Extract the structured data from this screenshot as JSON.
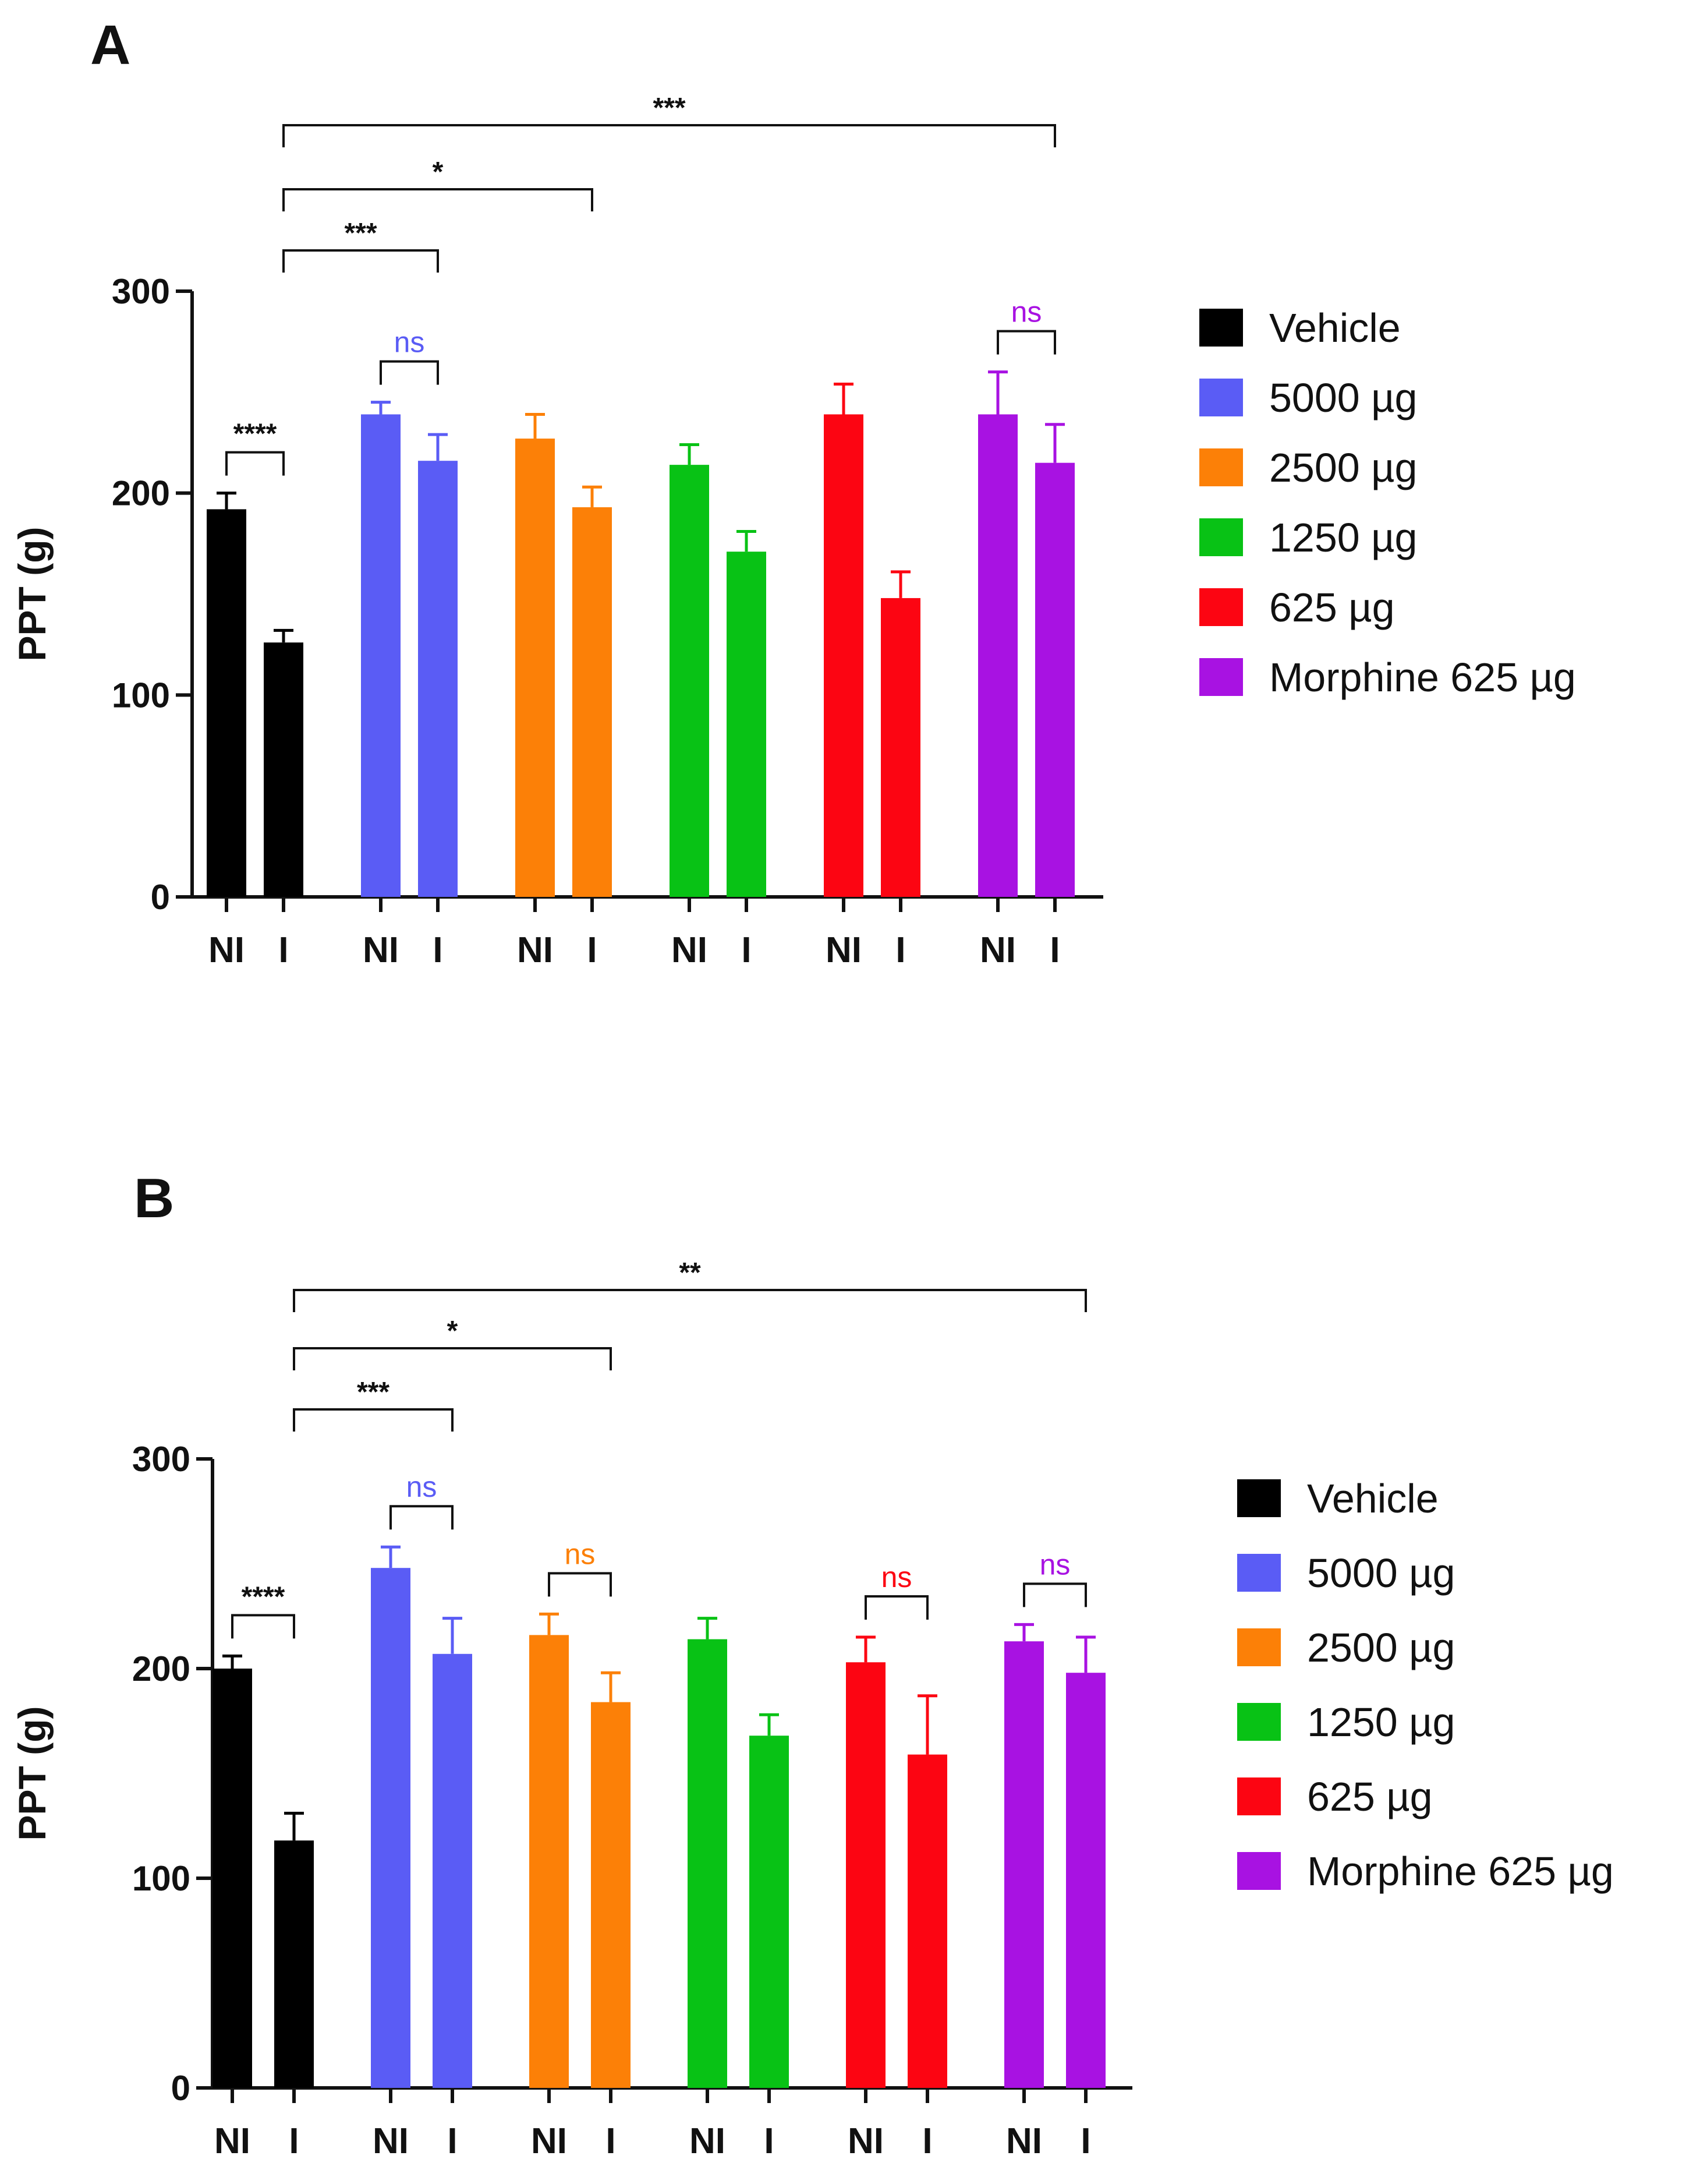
{
  "colors": {
    "Vehicle": "#000000",
    "5000 µg": "#5a5cf5",
    "2500 µg": "#fc8007",
    "1250 µg": "#08c215",
    "625 µg": "#fc0512",
    "Morphine 625 µg": "#a812e2"
  },
  "chart_data": [
    {
      "type": "bar",
      "panel": "A",
      "ylabel": "PPT (g)",
      "ylim": [
        0,
        300
      ],
      "yticks": [
        0,
        100,
        200,
        300
      ],
      "groups": [
        "Vehicle",
        "5000 µg",
        "2500 µg",
        "1250 µg",
        "625 µg",
        "Morphine 625 µg"
      ],
      "x_labels": [
        "NI",
        "I"
      ],
      "series": [
        {
          "name": "Vehicle",
          "values": [
            192,
            126
          ],
          "errors": [
            8,
            6
          ]
        },
        {
          "name": "5000 µg",
          "values": [
            239,
            216
          ],
          "errors": [
            6,
            13
          ]
        },
        {
          "name": "2500 µg",
          "values": [
            227,
            193
          ],
          "errors": [
            12,
            10
          ]
        },
        {
          "name": "1250 µg",
          "values": [
            214,
            171
          ],
          "errors": [
            10,
            10
          ]
        },
        {
          "name": "625 µg",
          "values": [
            239,
            148
          ],
          "errors": [
            15,
            13
          ]
        },
        {
          "name": "Morphine 625 µg",
          "values": [
            239,
            215
          ],
          "errors": [
            21,
            19
          ]
        }
      ],
      "legend": [
        "Vehicle",
        "5000 µg",
        "2500 µg",
        "1250 µg",
        "625 µg",
        "Morphine 625 µg"
      ],
      "legend_position": "right",
      "significance_top": [
        {
          "from": "Vehicle I",
          "to": "Morphine 625 µg I",
          "label": "***"
        },
        {
          "from": "Vehicle I",
          "to": "2500 µg I",
          "label": "*"
        },
        {
          "from": "Vehicle I",
          "to": "5000 µg I",
          "label": "***"
        }
      ],
      "significance_within": [
        {
          "group": "Vehicle",
          "label": "****"
        },
        {
          "group": "5000 µg",
          "label": "ns"
        },
        {
          "group": "Morphine 625 µg",
          "label": "ns"
        }
      ]
    },
    {
      "type": "bar",
      "panel": "B",
      "ylabel": "PPT (g)",
      "ylim": [
        0,
        300
      ],
      "yticks": [
        0,
        100,
        200,
        300
      ],
      "groups": [
        "Vehicle",
        "5000 µg",
        "2500 µg",
        "1250 µg",
        "625 µg",
        "Morphine 625 µg"
      ],
      "x_labels": [
        "NI",
        "I"
      ],
      "series": [
        {
          "name": "Vehicle",
          "values": [
            200,
            118
          ],
          "errors": [
            6,
            13
          ]
        },
        {
          "name": "5000 µg",
          "values": [
            248,
            207
          ],
          "errors": [
            10,
            17
          ]
        },
        {
          "name": "2500 µg",
          "values": [
            216,
            184
          ],
          "errors": [
            10,
            14
          ]
        },
        {
          "name": "1250 µg",
          "values": [
            214,
            168
          ],
          "errors": [
            10,
            10
          ]
        },
        {
          "name": "625 µg",
          "values": [
            203,
            159
          ],
          "errors": [
            12,
            28
          ]
        },
        {
          "name": "Morphine 625 µg",
          "values": [
            213,
            198
          ],
          "errors": [
            8,
            17
          ]
        }
      ],
      "legend": [
        "Vehicle",
        "5000 µg",
        "2500 µg",
        "1250 µg",
        "625 µg",
        "Morphine 625 µg"
      ],
      "legend_position": "right",
      "significance_top": [
        {
          "from": "Vehicle I",
          "to": "Morphine 625 µg I",
          "label": "**"
        },
        {
          "from": "Vehicle I",
          "to": "2500 µg I",
          "label": "*"
        },
        {
          "from": "Vehicle I",
          "to": "5000 µg I",
          "label": "***"
        }
      ],
      "significance_within": [
        {
          "group": "Vehicle",
          "label": "****"
        },
        {
          "group": "5000 µg",
          "label": "ns"
        },
        {
          "group": "2500 µg",
          "label": "ns"
        },
        {
          "group": "625 µg",
          "label": "ns"
        },
        {
          "group": "Morphine 625 µg",
          "label": "ns"
        }
      ]
    }
  ]
}
